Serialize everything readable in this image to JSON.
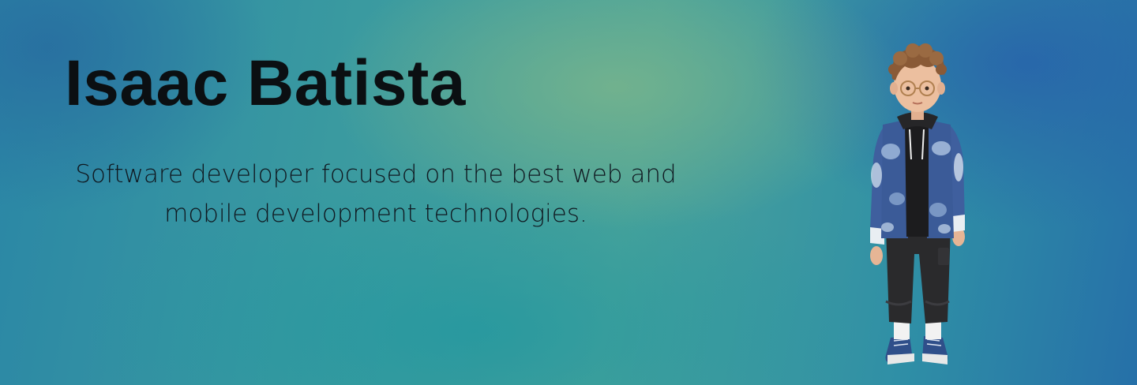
{
  "hero": {
    "name": "Isaac Batista",
    "tagline_line1": "Software developer focused on the best web and",
    "tagline_line2": "mobile development technologies."
  },
  "avatar": {
    "icon": "person-avatar-icon"
  },
  "colors": {
    "background_teal": "#3a9aa0",
    "background_green_glow": "#78b48c",
    "background_blue_edge": "#2670a8",
    "text_dark": "#0b0f12"
  }
}
